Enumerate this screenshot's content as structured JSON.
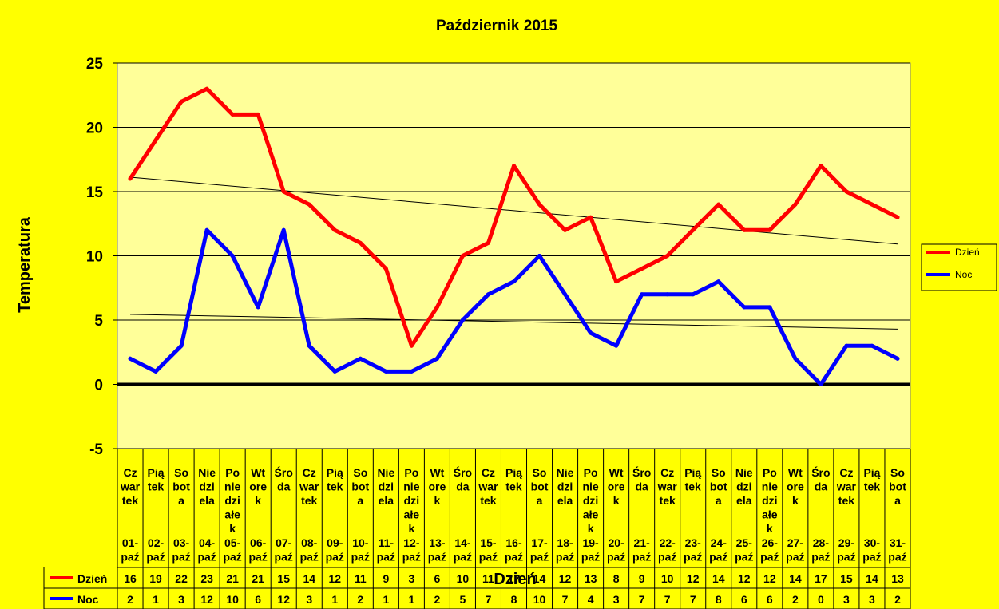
{
  "chart_data": {
    "type": "line",
    "title": "Październik 2015",
    "ylabel": "Temperatura",
    "xlabel": "Dzień",
    "ylim": [
      -5,
      25
    ],
    "yticks": [
      "25",
      "20",
      "15",
      "10",
      "5",
      "0",
      "-5"
    ],
    "yticks_values": [
      25,
      20,
      15,
      10,
      5,
      0,
      -5
    ],
    "day_names": [
      [
        "Cz",
        "war",
        "tek"
      ],
      [
        "Pią",
        "tek"
      ],
      [
        "So",
        "bot",
        "a"
      ],
      [
        "Nie",
        "dzi",
        "ela"
      ],
      [
        "Po",
        "nie",
        "dzi",
        "ałe",
        "k"
      ],
      [
        "Wt",
        "ore",
        "k"
      ],
      [
        "Śro",
        "da"
      ],
      [
        "Cz",
        "war",
        "tek"
      ],
      [
        "Pią",
        "tek"
      ],
      [
        "So",
        "bot",
        "a"
      ],
      [
        "Nie",
        "dzi",
        "ela"
      ],
      [
        "Po",
        "nie",
        "dzi",
        "ałe",
        "k"
      ],
      [
        "Wt",
        "ore",
        "k"
      ],
      [
        "Śro",
        "da"
      ],
      [
        "Cz",
        "war",
        "tek"
      ],
      [
        "Pią",
        "tek"
      ],
      [
        "So",
        "bot",
        "a"
      ],
      [
        "Nie",
        "dzi",
        "ela"
      ],
      [
        "Po",
        "nie",
        "dzi",
        "ałe",
        "k"
      ],
      [
        "Wt",
        "ore",
        "k"
      ],
      [
        "Śro",
        "da"
      ],
      [
        "Cz",
        "war",
        "tek"
      ],
      [
        "Pią",
        "tek"
      ],
      [
        "So",
        "bot",
        "a"
      ],
      [
        "Nie",
        "dzi",
        "ela"
      ],
      [
        "Po",
        "nie",
        "dzi",
        "ałe",
        "k"
      ],
      [
        "Wt",
        "ore",
        "k"
      ],
      [
        "Śro",
        "da"
      ],
      [
        "Cz",
        "war",
        "tek"
      ],
      [
        "Pią",
        "tek"
      ],
      [
        "So",
        "bot",
        "a"
      ]
    ],
    "dates": [
      [
        "01-",
        "paź"
      ],
      [
        "02-",
        "paź"
      ],
      [
        "03-",
        "paź"
      ],
      [
        "04-",
        "paź"
      ],
      [
        "05-",
        "paź"
      ],
      [
        "06-",
        "paź"
      ],
      [
        "07-",
        "paź"
      ],
      [
        "08-",
        "paź"
      ],
      [
        "09-",
        "paź"
      ],
      [
        "10-",
        "paź"
      ],
      [
        "11-",
        "paź"
      ],
      [
        "12-",
        "paź"
      ],
      [
        "13-",
        "paź"
      ],
      [
        "14-",
        "paź"
      ],
      [
        "15-",
        "paź"
      ],
      [
        "16-",
        "paź"
      ],
      [
        "17-",
        "paź"
      ],
      [
        "18-",
        "paź"
      ],
      [
        "19-",
        "paź"
      ],
      [
        "20-",
        "paź"
      ],
      [
        "21-",
        "paź"
      ],
      [
        "22-",
        "paź"
      ],
      [
        "23-",
        "paź"
      ],
      [
        "24-",
        "paź"
      ],
      [
        "25-",
        "paź"
      ],
      [
        "26-",
        "paź"
      ],
      [
        "27-",
        "paź"
      ],
      [
        "28-",
        "paź"
      ],
      [
        "29-",
        "paź"
      ],
      [
        "30-",
        "paź"
      ],
      [
        "31-",
        "paź"
      ]
    ],
    "series": [
      {
        "name": "Dzień",
        "color": "#ff0000",
        "values": [
          16,
          19,
          22,
          23,
          21,
          21,
          15,
          14,
          12,
          11,
          9,
          3,
          6,
          10,
          11,
          17,
          14,
          12,
          13,
          8,
          9,
          10,
          12,
          14,
          12,
          12,
          14,
          17,
          15,
          14,
          13
        ]
      },
      {
        "name": "Noc",
        "color": "#0000ff",
        "values": [
          2,
          1,
          3,
          12,
          10,
          6,
          12,
          3,
          1,
          2,
          1,
          1,
          2,
          5,
          7,
          8,
          10,
          7,
          4,
          3,
          7,
          7,
          7,
          8,
          6,
          6,
          2,
          0,
          3,
          3,
          2
        ]
      }
    ],
    "trendlines": true,
    "grid": true,
    "legend": "right",
    "data_table": true,
    "colors": {
      "background": "#ffff00",
      "plot_area": "#ffff99"
    }
  }
}
